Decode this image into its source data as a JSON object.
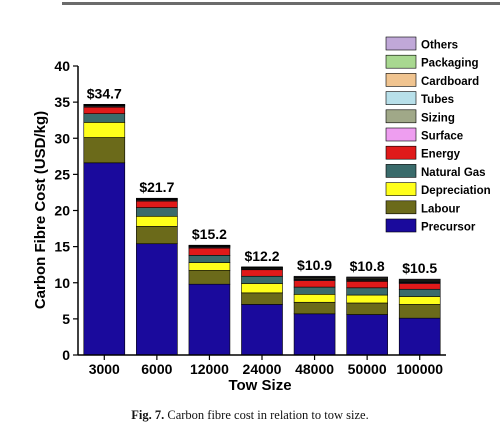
{
  "caption": {
    "label": "Fig. 7.",
    "text": "Carbon fibre cost in relation to tow size."
  },
  "chart_data": {
    "type": "bar",
    "stacked": true,
    "xlabel": "Tow Size",
    "ylabel": "Carbon Fibre Cost (USD/kg)",
    "ylim": [
      0,
      40
    ],
    "yticks": [
      0,
      5,
      10,
      15,
      20,
      25,
      30,
      35,
      40
    ],
    "categories": [
      "3000",
      "6000",
      "12000",
      "24000",
      "48000",
      "50000",
      "100000"
    ],
    "totals": [
      34.7,
      21.7,
      15.2,
      12.2,
      10.9,
      10.8,
      10.5
    ],
    "total_labels": [
      "$34.7",
      "$21.7",
      "$15.2",
      "$12.2",
      "$10.9",
      "$10.8",
      "$10.5"
    ],
    "legend_position": "top-right",
    "series": [
      {
        "name": "Precursor",
        "color": "#1a0a9c",
        "values": [
          26.6,
          15.4,
          9.8,
          7.0,
          5.7,
          5.6,
          5.1
        ]
      },
      {
        "name": "Labour",
        "color": "#6b6a1a",
        "values": [
          3.5,
          2.4,
          1.9,
          1.6,
          1.6,
          1.6,
          1.9
        ]
      },
      {
        "name": "Depreciation",
        "color": "#ffff1a",
        "values": [
          2.1,
          1.4,
          1.1,
          1.3,
          1.1,
          1.1,
          1.1
        ]
      },
      {
        "name": "Natural Gas",
        "color": "#3a6b6b",
        "values": [
          1.2,
          1.2,
          1.0,
          1.0,
          1.0,
          1.0,
          1.0
        ]
      },
      {
        "name": "Energy",
        "color": "#e01a1a",
        "values": [
          0.9,
          0.9,
          1.0,
          0.9,
          0.9,
          0.9,
          0.8
        ]
      },
      {
        "name": "Surface",
        "color": "#ee9ef0",
        "values": [
          0.1,
          0.1,
          0.1,
          0.1,
          0.1,
          0.1,
          0.1
        ]
      },
      {
        "name": "Sizing",
        "color": "#a0a888",
        "values": [
          0.1,
          0.1,
          0.1,
          0.1,
          0.1,
          0.1,
          0.1
        ]
      },
      {
        "name": "Tubes",
        "color": "#b8e0ea",
        "values": [
          0.05,
          0.05,
          0.05,
          0.05,
          0.1,
          0.1,
          0.1
        ]
      },
      {
        "name": "Cardboard",
        "color": "#f0c490",
        "values": [
          0.05,
          0.05,
          0.05,
          0.05,
          0.1,
          0.1,
          0.1
        ]
      },
      {
        "name": "Packaging",
        "color": "#a8d890",
        "values": [
          0.05,
          0.05,
          0.05,
          0.05,
          0.1,
          0.1,
          0.1
        ]
      },
      {
        "name": "Others",
        "color": "#c0a8d8",
        "values": [
          0.05,
          0.05,
          0.05,
          0.05,
          0.1,
          0.1,
          0.1
        ]
      }
    ]
  }
}
